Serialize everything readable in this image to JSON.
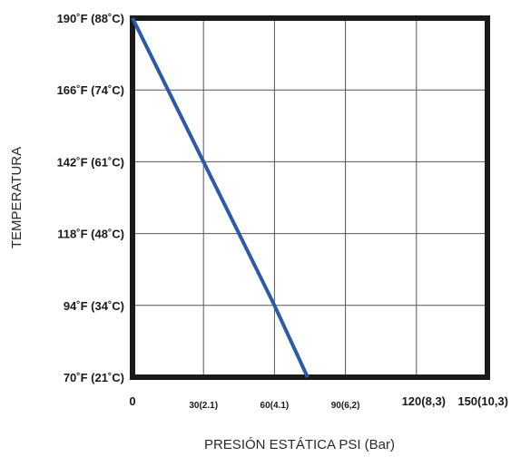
{
  "chart_data": {
    "type": "line",
    "title": "",
    "xlabel": "PRESIÓN ESTÁTICA PSI (Bar)",
    "ylabel": "TEMPERATURA",
    "x_ticks": [
      {
        "value": 0,
        "label": "0"
      },
      {
        "value": 30,
        "label": "30(2.1)"
      },
      {
        "value": 60,
        "label": "60(4.1)"
      },
      {
        "value": 90,
        "label": "90(6,2)"
      },
      {
        "value": 120,
        "label": "120(8,3)"
      },
      {
        "value": 150,
        "label": "150(10,3)"
      }
    ],
    "y_ticks": [
      {
        "value": 70,
        "label": "70˚F (21˚C)"
      },
      {
        "value": 94,
        "label": "94˚F (34˚C)"
      },
      {
        "value": 118,
        "label": "118˚F (48˚C)"
      },
      {
        "value": 142,
        "label": "142˚F (61˚C)"
      },
      {
        "value": 166,
        "label": "166˚F (74˚C)"
      },
      {
        "value": 190,
        "label": "190˚F (88˚C)"
      }
    ],
    "xlim": [
      0,
      150
    ],
    "ylim": [
      70,
      190
    ],
    "grid": true,
    "series": [
      {
        "color": "#2b5aa6",
        "points": [
          {
            "x": 0,
            "y": 190
          },
          {
            "x": 30,
            "y": 142
          },
          {
            "x": 60,
            "y": 94
          },
          {
            "x": 74,
            "y": 70
          }
        ]
      }
    ]
  }
}
